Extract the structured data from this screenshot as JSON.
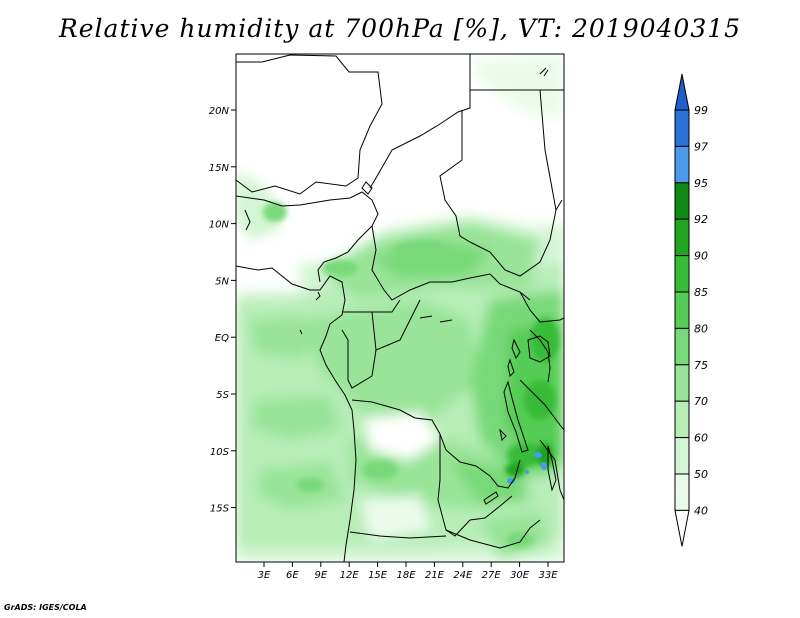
{
  "title": "Relative humidity at 700hPa [%], VT: 2019040315",
  "credit": "GrADS: IGES/COLA",
  "map": {
    "lat_labels": [
      "20N",
      "15N",
      "10N",
      "5N",
      "EQ",
      "5S",
      "10S",
      "15S"
    ],
    "lon_labels": [
      "3E",
      "6E",
      "9E",
      "12E",
      "15E",
      "18E",
      "21E",
      "24E",
      "27E",
      "30E",
      "33E"
    ]
  },
  "colorbar": {
    "labels": [
      "99",
      "97",
      "95",
      "92",
      "90",
      "85",
      "80",
      "75",
      "70",
      "60",
      "50",
      "40"
    ],
    "colors": {
      "top": "#1f5fc8",
      "99": "#2a72d8",
      "97": "#4c9aec",
      "95": "#0f8a14",
      "92": "#1fa51f",
      "90": "#37bc37",
      "85": "#55cc55",
      "80": "#78d978",
      "75": "#99e499",
      "70": "#b7edb7",
      "60": "#d3f5d3",
      "50": "#ebfbeb",
      "40": "#ffffff"
    }
  }
}
